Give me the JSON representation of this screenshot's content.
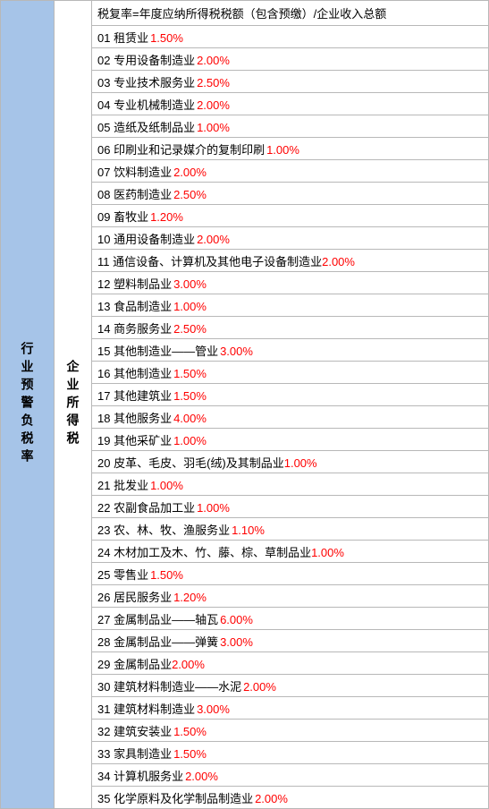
{
  "left_header": "行业预警负税率",
  "mid_header": "企业所得税",
  "formula": "税复率=年度应纳所得税税额（包含预缴）/企业收入总额",
  "colors": {
    "left_bg": "#a6c4e8",
    "border": "#b8b8b8",
    "text": "#000000",
    "rate": "#ff0000"
  },
  "rows": [
    {
      "num": "01",
      "label": "租赁业",
      "rate": "1.50%"
    },
    {
      "num": "02",
      "label": "专用设备制造业",
      "rate": "2.00%"
    },
    {
      "num": "03",
      "label": "专业技术服务业",
      "rate": "2.50%"
    },
    {
      "num": "04",
      "label": "专业机械制造业",
      "rate": "2.00%"
    },
    {
      "num": "05",
      "label": "造纸及纸制品业",
      "rate": "1.00%"
    },
    {
      "num": "06",
      "label": "印刷业和记录媒介的复制印刷",
      "rate": "1.00%"
    },
    {
      "num": "07",
      "label": "饮料制造业",
      "rate": "2.00%"
    },
    {
      "num": "08",
      "label": "医药制造业",
      "rate": "2.50%"
    },
    {
      "num": "09",
      "label": "畜牧业",
      "rate": "1.20%"
    },
    {
      "num": "10",
      "label": "通用设备制造业",
      "rate": "2.00%"
    },
    {
      "num": "11",
      "label": "通信设备、计算机及其他电子设备制造业",
      "rate": "2.00%"
    },
    {
      "num": "12",
      "label": "塑料制品业",
      "rate": "3.00%"
    },
    {
      "num": "13",
      "label": "食品制造业",
      "rate": "1.00%"
    },
    {
      "num": "14",
      "label": "商务服务业",
      "rate": "2.50%"
    },
    {
      "num": "15",
      "label": "其他制造业——管业",
      "rate": "3.00%"
    },
    {
      "num": "16",
      "label": "其他制造业",
      "rate": "1.50%"
    },
    {
      "num": "17",
      "label": "其他建筑业",
      "rate": "1.50%"
    },
    {
      "num": "18",
      "label": "其他服务业",
      "rate": "4.00%"
    },
    {
      "num": "19",
      "label": "其他采矿业",
      "rate": "1.00%"
    },
    {
      "num": "20",
      "label": "皮革、毛皮、羽毛(绒)及其制品业",
      "rate": "1.00%"
    },
    {
      "num": "21",
      "label": "批发业",
      "rate": "1.00%"
    },
    {
      "num": "22",
      "label": "农副食品加工业",
      "rate": "1.00%"
    },
    {
      "num": "23",
      "label": "农、林、牧、渔服务业",
      "rate": "1.10%"
    },
    {
      "num": "24",
      "label": "木材加工及木、竹、藤、棕、草制品业",
      "rate": "1.00%"
    },
    {
      "num": "25",
      "label": "零售业",
      "rate": "1.50%"
    },
    {
      "num": "26",
      "label": "居民服务业",
      "rate": "1.20%"
    },
    {
      "num": "27",
      "label": "金属制品业——轴瓦",
      "rate": "6.00%"
    },
    {
      "num": "28",
      "label": "金属制品业——弹簧",
      "rate": "3.00%"
    },
    {
      "num": "29",
      "label": "金属制品业",
      "rate": "2.00%"
    },
    {
      "num": "30",
      "label": "建筑材料制造业——水泥",
      "rate": "2.00%"
    },
    {
      "num": "31",
      "label": "建筑材料制造业",
      "rate": "3.00%"
    },
    {
      "num": "32",
      "label": "建筑安装业",
      "rate": "1.50%"
    },
    {
      "num": "33",
      "label": "家具制造业",
      "rate": "1.50%"
    },
    {
      "num": "34",
      "label": "计算机服务业",
      "rate": "2.00%"
    },
    {
      "num": "35",
      "label": "化学原料及化学制品制造业",
      "rate": "2.00%"
    }
  ]
}
